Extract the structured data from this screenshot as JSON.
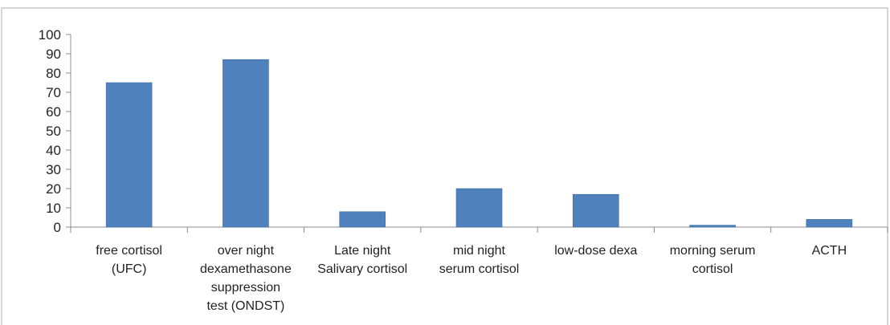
{
  "chart_data": {
    "type": "bar",
    "title": "",
    "xlabel": "",
    "ylabel": "",
    "ylim": [
      0,
      100
    ],
    "yticks": [
      0,
      10,
      20,
      30,
      40,
      50,
      60,
      70,
      80,
      90,
      100
    ],
    "grid": false,
    "legend": "none",
    "bar_color": "#4f81bd",
    "categories": [
      [
        "free cortisol",
        "(UFC)"
      ],
      [
        "over night",
        "dexamethasone",
        "suppression",
        "test (ONDST)"
      ],
      [
        "Late night",
        "Salivary cortisol"
      ],
      [
        "mid night",
        "serum cortisol"
      ],
      [
        "low-dose dexa"
      ],
      [
        "morning serum",
        "cortisol"
      ],
      [
        "ACTH"
      ]
    ],
    "values": [
      75,
      87,
      8,
      20,
      17,
      1,
      4
    ]
  }
}
